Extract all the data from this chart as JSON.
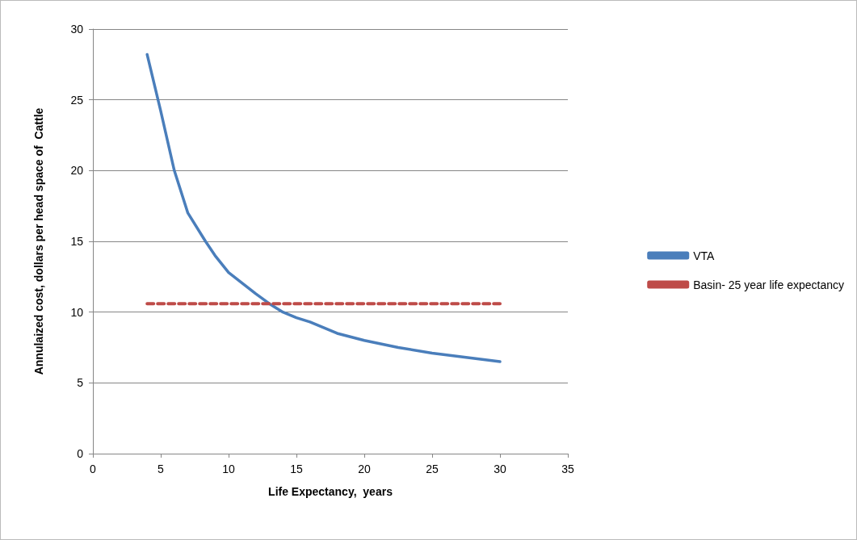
{
  "chart_data": {
    "type": "line",
    "xlabel": "Life Expectancy,  years",
    "ylabel": "Annulaized cost, dollars per head space of  Cattle",
    "xlim": [
      0,
      35
    ],
    "xticks": [
      0,
      5,
      10,
      15,
      20,
      25,
      30,
      35
    ],
    "ylim": [
      0,
      30
    ],
    "yticks": [
      0,
      5,
      10,
      15,
      20,
      25,
      30
    ],
    "grid": "y",
    "legend": "right",
    "marker": "none",
    "series": [
      {
        "name": "VTA",
        "color": "#4a7ebb",
        "line_style": "solid",
        "x": [
          4,
          4.8,
          5,
          6,
          7,
          8.3,
          9,
          10,
          12,
          13,
          14,
          15,
          16,
          18,
          20,
          22.5,
          25,
          30
        ],
        "values": [
          28.2,
          25,
          24.2,
          20,
          17,
          15,
          14,
          12.8,
          11.3,
          10.6,
          10,
          9.6,
          9.3,
          8.5,
          8,
          7.5,
          7.1,
          6.5
        ]
      },
      {
        "name": "Basin- 25 year life expectancy",
        "color": "#be4b48",
        "line_style": "dashed",
        "x": [
          4,
          30
        ],
        "values": [
          10.6,
          10.6
        ]
      }
    ]
  }
}
